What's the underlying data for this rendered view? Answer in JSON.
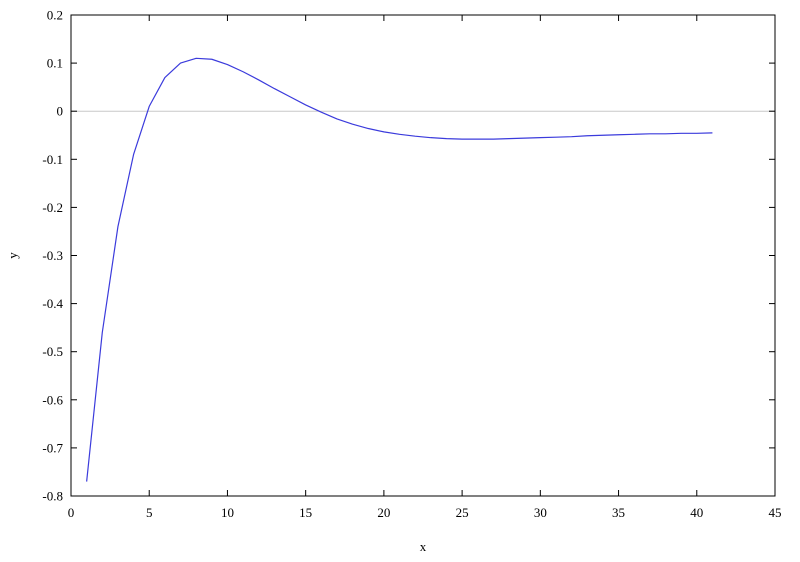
{
  "chart_data": {
    "type": "line",
    "xlabel": "x",
    "ylabel": "y",
    "xlim": [
      0,
      45
    ],
    "ylim": [
      -0.8,
      0.2
    ],
    "x_ticks": [
      0,
      5,
      10,
      15,
      20,
      25,
      30,
      35,
      40,
      45
    ],
    "y_ticks": [
      -0.8,
      -0.7,
      -0.6,
      -0.5,
      -0.4,
      -0.3,
      -0.2,
      -0.1,
      0,
      0.1,
      0.2
    ],
    "x_tick_labels": [
      "0",
      "5",
      "10",
      "15",
      "20",
      "25",
      "30",
      "35",
      "40",
      "45"
    ],
    "y_tick_labels": [
      "-0.8",
      "-0.7",
      "-0.6",
      "-0.5",
      "-0.4",
      "-0.3",
      "-0.2",
      "-0.1",
      "0",
      "0.1",
      "0.2"
    ],
    "zero_line": true,
    "grid": false,
    "series": [
      {
        "color": "#3b3bdc",
        "x": [
          1,
          2,
          3,
          4,
          5,
          6,
          7,
          8,
          9,
          10,
          11,
          12,
          13,
          14,
          15,
          16,
          17,
          18,
          19,
          20,
          21,
          22,
          23,
          24,
          25,
          26,
          27,
          28,
          29,
          30,
          31,
          32,
          33,
          34,
          35,
          36,
          37,
          38,
          39,
          40,
          41
        ],
        "y": [
          -0.77,
          -0.46,
          -0.24,
          -0.09,
          0.01,
          0.07,
          0.1,
          0.11,
          0.108,
          0.097,
          0.082,
          0.065,
          0.047,
          0.03,
          0.013,
          -0.002,
          -0.016,
          -0.027,
          -0.036,
          -0.043,
          -0.048,
          -0.052,
          -0.055,
          -0.057,
          -0.058,
          -0.058,
          -0.058,
          -0.057,
          -0.056,
          -0.055,
          -0.054,
          -0.053,
          -0.051,
          -0.05,
          -0.049,
          -0.048,
          -0.047,
          -0.047,
          -0.046,
          -0.046,
          -0.045
        ]
      }
    ]
  }
}
